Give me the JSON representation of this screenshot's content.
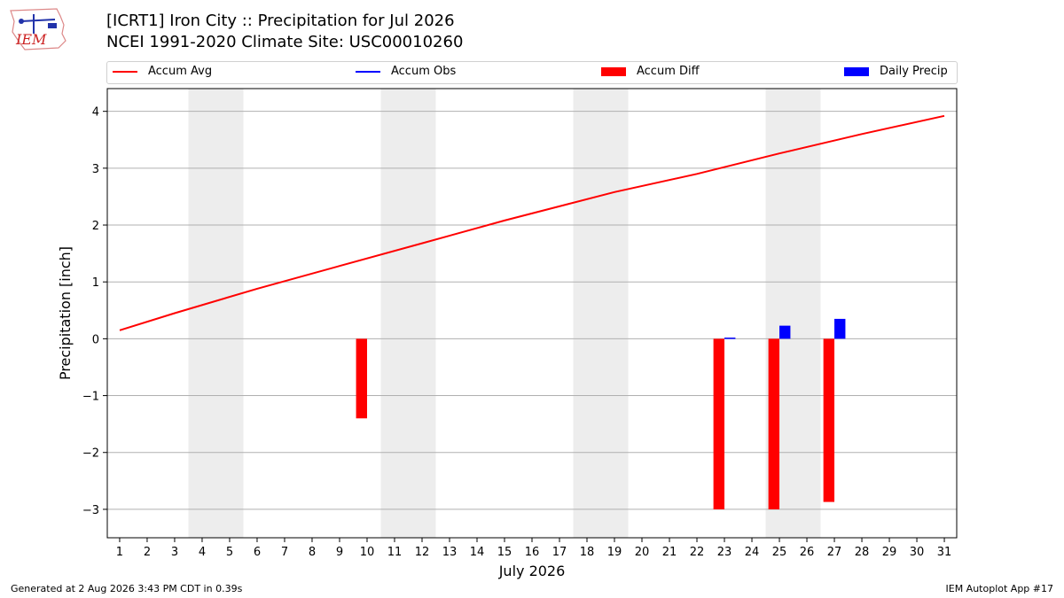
{
  "title": {
    "line1": "[ICRT1] Iron City :: Precipitation for Jul 2026",
    "line2": "NCEI 1991-2020 Climate Site: USC00010260"
  },
  "logo_text": "IEM",
  "footer": {
    "left": "Generated at 2 Aug 2026 3:43 PM CDT in 0.39s",
    "right": "IEM Autoplot App #17"
  },
  "colors": {
    "accum_avg": "#ff0000",
    "accum_obs": "#0000ff",
    "accum_diff": "#ff0000",
    "daily_precip": "#0000ff",
    "weekend_shade": "#ededed",
    "grid": "#b0b0b0"
  },
  "chart_data": {
    "type": "bar",
    "xlabel": "July 2026",
    "ylabel": "Precipitation [inch]",
    "ylim": [
      -3.5,
      4.4
    ],
    "yticks": [
      -3,
      -2,
      -1,
      0,
      1,
      2,
      3,
      4
    ],
    "ytick_labels": [
      "−3",
      "−2",
      "−1",
      "0",
      "1",
      "2",
      "3",
      "4"
    ],
    "days": [
      1,
      2,
      3,
      4,
      5,
      6,
      7,
      8,
      9,
      10,
      11,
      12,
      13,
      14,
      15,
      16,
      17,
      18,
      19,
      20,
      21,
      22,
      23,
      24,
      25,
      26,
      27,
      28,
      29,
      30,
      31
    ],
    "grid": "horizontal",
    "legend_position": "top, above plot",
    "weekend_shading": [
      [
        4,
        5
      ],
      [
        11,
        12
      ],
      [
        18,
        19
      ],
      [
        25,
        26
      ]
    ],
    "series": [
      {
        "name": "Accum Avg",
        "kind": "line",
        "x": [
          1,
          3,
          6,
          9,
          12,
          15,
          19,
          22,
          25,
          28,
          31
        ],
        "values": [
          0.15,
          0.45,
          0.88,
          1.28,
          1.68,
          2.08,
          2.58,
          2.9,
          3.26,
          3.6,
          3.92
        ]
      },
      {
        "name": "Accum Obs",
        "kind": "line",
        "x": [],
        "values": []
      },
      {
        "name": "Accum Diff",
        "kind": "bar",
        "x": [
          10,
          23,
          25,
          27
        ],
        "values": [
          -1.4,
          -3.0,
          -3.0,
          -2.87
        ]
      },
      {
        "name": "Daily Precip",
        "kind": "bar",
        "x": [
          23,
          25,
          27
        ],
        "values": [
          0.02,
          0.23,
          0.35
        ]
      }
    ]
  }
}
